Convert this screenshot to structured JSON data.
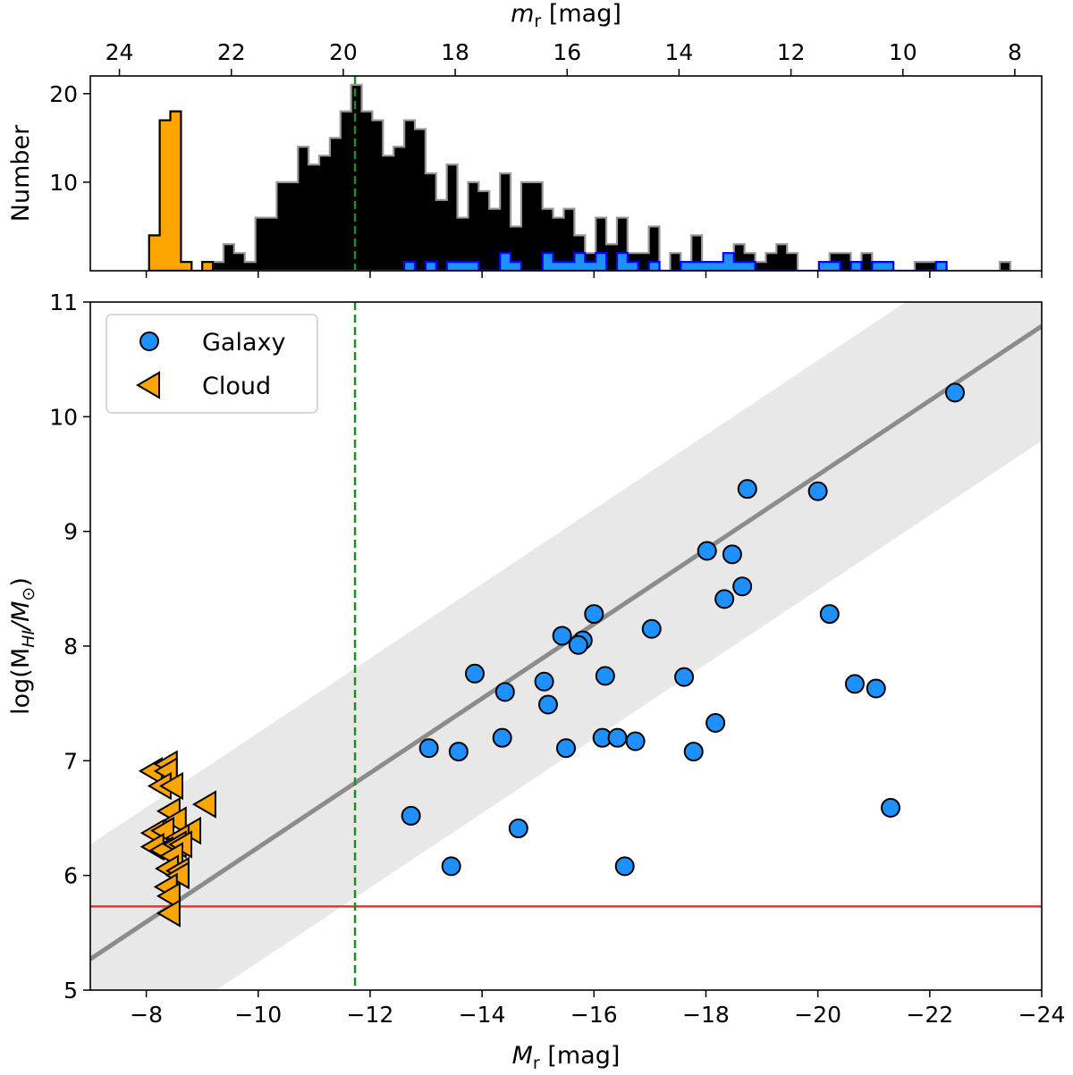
{
  "chart_data": [
    {
      "type": "histogram",
      "panel": "top",
      "xlabel": "m_r [mag]",
      "xlabel_main": "m",
      "xlabel_sub": "r",
      "xlabel_unit": " [mag]",
      "ylabel": "Number",
      "top_axis_ticks": [
        24,
        22,
        20,
        18,
        16,
        14,
        12,
        10,
        8
      ],
      "apparent_minus_absolute_mag": 31.52,
      "yticks": [
        10,
        20
      ],
      "ylim": [
        0,
        22
      ],
      "bin_start_mag": 23.47,
      "bin_width_mag": 0.19,
      "series": [
        {
          "role": "all",
          "color": "#000000",
          "edge": "#999999",
          "counts": [
            0,
            0,
            0,
            0,
            0,
            0,
            1,
            3,
            2,
            1,
            6,
            6,
            10,
            10,
            14,
            12,
            13,
            15,
            18,
            21,
            18,
            17,
            13,
            14,
            17,
            16,
            11,
            8,
            12,
            6,
            10,
            9,
            7,
            11,
            5,
            10,
            10,
            7,
            6,
            7,
            4,
            2,
            6,
            3,
            6,
            2,
            2,
            5,
            0,
            2,
            1,
            4,
            1,
            1,
            2,
            3,
            2,
            1,
            2,
            3,
            2,
            0,
            0,
            1,
            2,
            2,
            1,
            2,
            1,
            1,
            0,
            0,
            1,
            1,
            1,
            0,
            0,
            0,
            0,
            0,
            1
          ]
        },
        {
          "role": "galaxy",
          "color": "#1e90ff",
          "edge": "#0000ff",
          "counts": [
            0,
            0,
            0,
            0,
            0,
            0,
            0,
            0,
            0,
            0,
            0,
            0,
            0,
            0,
            0,
            0,
            0,
            0,
            0,
            0,
            0,
            0,
            0,
            0,
            1,
            0,
            1,
            0,
            1,
            1,
            1,
            0,
            0,
            2,
            1,
            0,
            0,
            2,
            1,
            1,
            2,
            1,
            2,
            0,
            2,
            1,
            0,
            1,
            0,
            0,
            1,
            1,
            1,
            1,
            2,
            1,
            1,
            0,
            0,
            0,
            0,
            0,
            0,
            1,
            1,
            0,
            1,
            0,
            1,
            1,
            0,
            0,
            0,
            0,
            1,
            0,
            0,
            0,
            0,
            0,
            0
          ]
        },
        {
          "role": "cloud",
          "color": "#ffa500",
          "edge": "#000000",
          "counts": [
            4,
            17,
            18,
            1,
            0,
            1
          ]
        }
      ],
      "vline_absolute_mag": -11.73,
      "vline_color": "#228b22"
    },
    {
      "type": "scatter",
      "panel": "bottom",
      "xlabel_main": "M",
      "xlabel_sub": "r",
      "xlabel_unit": " [mag]",
      "ylabel_pre": "log(M",
      "ylabel_sub": "HI",
      "ylabel_mid": "/M",
      "ylabel_sub2": "⊙",
      "ylabel_post": ")",
      "xlim": [
        -7,
        -24
      ],
      "ylim": [
        5,
        11
      ],
      "xticks": [
        -8,
        -10,
        -12,
        -14,
        -16,
        -18,
        -20,
        -22,
        -24
      ],
      "yticks": [
        5,
        6,
        7,
        8,
        9,
        10,
        11
      ],
      "legend": {
        "position": "upper-left",
        "entries": [
          "Galaxy",
          "Cloud"
        ]
      },
      "series": [
        {
          "name": "Galaxy",
          "marker": "circle",
          "color": "#1e90ff",
          "points": [
            [
              -12.73,
              6.52
            ],
            [
              -13.05,
              7.11
            ],
            [
              -13.45,
              6.08
            ],
            [
              -13.58,
              7.08
            ],
            [
              -13.87,
              7.76
            ],
            [
              -14.36,
              7.2
            ],
            [
              -14.41,
              7.6
            ],
            [
              -14.65,
              6.41
            ],
            [
              -15.11,
              7.69
            ],
            [
              -15.18,
              7.49
            ],
            [
              -15.43,
              8.09
            ],
            [
              -15.5,
              7.11
            ],
            [
              -15.8,
              8.05
            ],
            [
              -15.72,
              8.01
            ],
            [
              -16.0,
              8.28
            ],
            [
              -16.15,
              7.2
            ],
            [
              -16.2,
              7.74
            ],
            [
              -16.42,
              7.2
            ],
            [
              -16.55,
              6.08
            ],
            [
              -16.74,
              7.17
            ],
            [
              -17.03,
              8.15
            ],
            [
              -17.61,
              7.73
            ],
            [
              -17.78,
              7.08
            ],
            [
              -18.02,
              8.83
            ],
            [
              -18.17,
              7.33
            ],
            [
              -18.33,
              8.41
            ],
            [
              -18.47,
              8.8
            ],
            [
              -18.65,
              8.52
            ],
            [
              -18.74,
              9.37
            ],
            [
              -20.0,
              9.35
            ],
            [
              -20.21,
              8.28
            ],
            [
              -20.66,
              7.67
            ],
            [
              -21.04,
              7.63
            ],
            [
              -21.3,
              6.59
            ],
            [
              -22.45,
              10.21
            ]
          ]
        },
        {
          "name": "Cloud",
          "marker": "triangle-left",
          "color": "#ffa500",
          "points": [
            [
              -8.1,
              6.91
            ],
            [
              -8.37,
              6.97
            ],
            [
              -8.37,
              6.91
            ],
            [
              -8.26,
              6.78
            ],
            [
              -8.47,
              6.78
            ],
            [
              -9.06,
              6.62
            ],
            [
              -8.42,
              6.56
            ],
            [
              -8.53,
              6.48
            ],
            [
              -8.13,
              6.37
            ],
            [
              -8.31,
              6.39
            ],
            [
              -8.79,
              6.39
            ],
            [
              -8.58,
              6.33
            ],
            [
              -8.13,
              6.25
            ],
            [
              -8.29,
              6.22
            ],
            [
              -8.53,
              6.27
            ],
            [
              -8.63,
              6.27
            ],
            [
              -8.47,
              6.17
            ],
            [
              -8.39,
              6.06
            ],
            [
              -8.58,
              6.04
            ],
            [
              -8.58,
              6.0
            ],
            [
              -8.37,
              5.9
            ],
            [
              -8.42,
              5.82
            ],
            [
              -8.42,
              5.67
            ]
          ]
        }
      ],
      "fit_line": {
        "points": [
          [
            -7,
            5.27
          ],
          [
            -24,
            10.79
          ]
        ],
        "color": "#8c8c8c",
        "band_dex": 1.0,
        "band_color": "#e8e8e8"
      },
      "hline": {
        "y": 5.73,
        "color": "#ee3333"
      },
      "vline": {
        "x": -11.73,
        "color": "#228b22"
      }
    }
  ]
}
